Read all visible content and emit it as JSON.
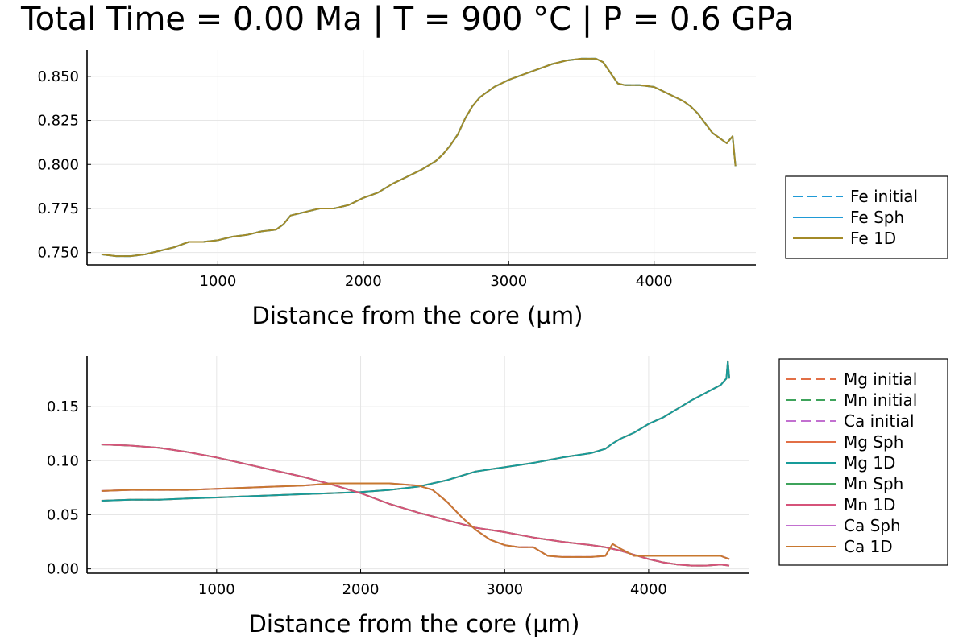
{
  "title": "Total Time = 0.00 Ma | T = 900 °C | P = 0.6 GPa",
  "colors": {
    "fe_initial": "#1f9ad6",
    "fe_sph": "#1f9ad6",
    "fe_1d": "#a38a27",
    "mg_initial": "#e26f46",
    "mn_initial": "#3ea35b",
    "ca_initial": "#c270d0",
    "mg_sph": "#e26f46",
    "mg_1d": "#179b99",
    "mn_sph": "#3ea35b",
    "mn_1d": "#d6537a",
    "ca_sph": "#c270d0",
    "ca_1d": "#c8782f"
  },
  "chart_data": [
    {
      "type": "line",
      "title": "",
      "xlabel": "Distance from the core (µm)",
      "ylabel": "",
      "xlim": [
        100,
        4700
      ],
      "ylim": [
        0.743,
        0.865
      ],
      "xticks": [
        1000,
        2000,
        3000,
        4000
      ],
      "yticks": [
        0.75,
        0.775,
        0.8,
        0.825,
        0.85
      ],
      "xtick_labels": [
        "1000",
        "2000",
        "3000",
        "4000"
      ],
      "ytick_labels": [
        "0.750",
        "0.775",
        "0.800",
        "0.825",
        "0.850"
      ],
      "grid": true,
      "legend": "right",
      "series": [
        {
          "name": "Fe initial",
          "style": "dashed",
          "color_key": "fe_initial",
          "source": "fe"
        },
        {
          "name": "Fe Sph",
          "style": "solid",
          "color_key": "fe_sph",
          "source": "fe"
        },
        {
          "name": "Fe 1D",
          "style": "solid",
          "color_key": "fe_1d",
          "source": "fe"
        }
      ],
      "profiles": {
        "fe": {
          "x": [
            200,
            300,
            400,
            500,
            600,
            700,
            800,
            900,
            1000,
            1100,
            1200,
            1300,
            1400,
            1450,
            1500,
            1600,
            1700,
            1800,
            1900,
            2000,
            2100,
            2200,
            2300,
            2400,
            2500,
            2550,
            2600,
            2650,
            2700,
            2750,
            2800,
            2900,
            3000,
            3100,
            3200,
            3300,
            3400,
            3500,
            3600,
            3650,
            3700,
            3750,
            3800,
            3900,
            4000,
            4100,
            4200,
            4250,
            4300,
            4400,
            4500,
            4540,
            4560
          ],
          "y": [
            0.749,
            0.748,
            0.748,
            0.749,
            0.751,
            0.753,
            0.756,
            0.756,
            0.757,
            0.759,
            0.76,
            0.762,
            0.763,
            0.766,
            0.771,
            0.773,
            0.775,
            0.775,
            0.777,
            0.781,
            0.784,
            0.789,
            0.793,
            0.797,
            0.802,
            0.806,
            0.811,
            0.817,
            0.826,
            0.833,
            0.838,
            0.844,
            0.848,
            0.851,
            0.854,
            0.857,
            0.859,
            0.86,
            0.86,
            0.858,
            0.852,
            0.846,
            0.845,
            0.845,
            0.844,
            0.84,
            0.836,
            0.833,
            0.829,
            0.818,
            0.812,
            0.816,
            0.799
          ]
        }
      }
    },
    {
      "type": "line",
      "title": "",
      "xlabel": "Distance from the core (µm)",
      "ylabel": "",
      "xlim": [
        100,
        4700
      ],
      "ylim": [
        -0.004,
        0.197
      ],
      "xticks": [
        1000,
        2000,
        3000,
        4000
      ],
      "yticks": [
        0.0,
        0.05,
        0.1,
        0.15
      ],
      "xtick_labels": [
        "1000",
        "2000",
        "3000",
        "4000"
      ],
      "ytick_labels": [
        "0.00",
        "0.05",
        "0.10",
        "0.15"
      ],
      "grid": true,
      "legend": "right",
      "series": [
        {
          "name": "Mg initial",
          "style": "dashed",
          "color_key": "mg_initial",
          "source": "mg"
        },
        {
          "name": "Mn initial",
          "style": "dashed",
          "color_key": "mn_initial",
          "source": "mn"
        },
        {
          "name": "Ca initial",
          "style": "dashed",
          "color_key": "ca_initial",
          "source": "ca"
        },
        {
          "name": "Mg Sph",
          "style": "solid",
          "color_key": "mg_sph",
          "source": "mg"
        },
        {
          "name": "Mg 1D",
          "style": "solid",
          "color_key": "mg_1d",
          "source": "mg"
        },
        {
          "name": "Mn Sph",
          "style": "solid",
          "color_key": "mn_sph",
          "source": "mn"
        },
        {
          "name": "Mn 1D",
          "style": "solid",
          "color_key": "mn_1d",
          "source": "mn"
        },
        {
          "name": "Ca Sph",
          "style": "solid",
          "color_key": "ca_sph",
          "source": "ca"
        },
        {
          "name": "Ca 1D",
          "style": "solid",
          "color_key": "ca_1d",
          "source": "ca"
        }
      ],
      "profiles": {
        "mg": {
          "x": [
            200,
            400,
            600,
            800,
            1000,
            1200,
            1400,
            1600,
            1800,
            2000,
            2200,
            2400,
            2500,
            2600,
            2700,
            2800,
            2900,
            3000,
            3200,
            3400,
            3600,
            3700,
            3750,
            3800,
            3900,
            4000,
            4100,
            4200,
            4300,
            4400,
            4500,
            4540,
            4550,
            4560
          ],
          "y": [
            0.063,
            0.064,
            0.064,
            0.065,
            0.066,
            0.067,
            0.068,
            0.069,
            0.07,
            0.071,
            0.073,
            0.076,
            0.079,
            0.082,
            0.086,
            0.09,
            0.092,
            0.094,
            0.098,
            0.103,
            0.107,
            0.111,
            0.116,
            0.12,
            0.126,
            0.134,
            0.14,
            0.148,
            0.156,
            0.163,
            0.17,
            0.176,
            0.192,
            0.176
          ]
        },
        "mn": {
          "x": [
            200,
            400,
            600,
            800,
            1000,
            1200,
            1400,
            1600,
            1800,
            2000,
            2200,
            2400,
            2600,
            2800,
            3000,
            3200,
            3400,
            3600,
            3700,
            3800,
            3900,
            4000,
            4100,
            4200,
            4300,
            4400,
            4500,
            4560
          ],
          "y": [
            0.115,
            0.114,
            0.112,
            0.108,
            0.103,
            0.097,
            0.091,
            0.085,
            0.078,
            0.07,
            0.06,
            0.052,
            0.045,
            0.038,
            0.034,
            0.029,
            0.025,
            0.022,
            0.02,
            0.017,
            0.013,
            0.009,
            0.006,
            0.004,
            0.003,
            0.003,
            0.004,
            0.003
          ]
        },
        "ca": {
          "x": [
            200,
            400,
            600,
            800,
            1000,
            1200,
            1400,
            1600,
            1800,
            2000,
            2200,
            2400,
            2500,
            2600,
            2700,
            2800,
            2900,
            3000,
            3100,
            3200,
            3300,
            3400,
            3500,
            3600,
            3700,
            3750,
            3800,
            3900,
            4000,
            4100,
            4200,
            4300,
            4400,
            4500,
            4540,
            4560
          ],
          "y": [
            0.072,
            0.073,
            0.073,
            0.073,
            0.074,
            0.075,
            0.076,
            0.077,
            0.079,
            0.079,
            0.079,
            0.077,
            0.073,
            0.062,
            0.048,
            0.036,
            0.027,
            0.022,
            0.02,
            0.02,
            0.012,
            0.011,
            0.011,
            0.011,
            0.012,
            0.023,
            0.019,
            0.012,
            0.012,
            0.012,
            0.012,
            0.012,
            0.012,
            0.012,
            0.01,
            0.009
          ]
        }
      }
    }
  ]
}
